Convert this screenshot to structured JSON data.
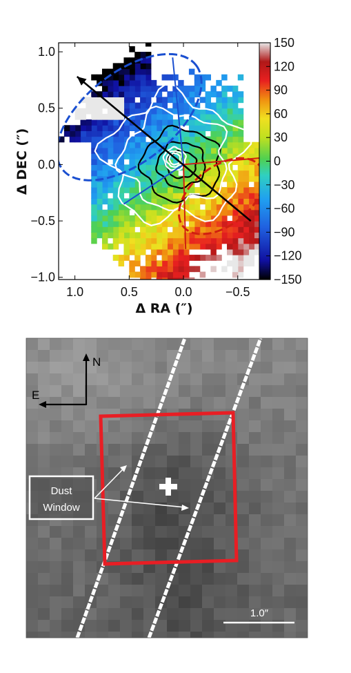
{
  "chart_data": [
    {
      "type": "heatmap",
      "title": "",
      "xlabel": "Δ RA (″)",
      "ylabel": "Δ DEC (″)",
      "xlim": [
        1.15,
        -0.8
      ],
      "ylim": [
        -1.02,
        1.08
      ],
      "x_ticks": [
        1.0,
        0.5,
        0.0,
        -0.5
      ],
      "x_tick_labels": [
        "1.0",
        "0.5",
        "0.0",
        "−0.5"
      ],
      "y_ticks": [
        1.0,
        0.5,
        0.0,
        -0.5,
        -1.0
      ],
      "y_tick_labels": [
        "1.0",
        "0.5",
        "0.0",
        "−0.5",
        "−1.0"
      ],
      "colorbar": {
        "range": [
          -150,
          150
        ],
        "ticks": [
          150,
          120,
          90,
          60,
          30,
          0,
          -30,
          -60,
          -90,
          -120,
          -150
        ],
        "tick_labels": [
          "150",
          "120",
          "90",
          "60",
          "30",
          "0",
          "−30",
          "−60",
          "−90",
          "−120",
          "−150"
        ],
        "colormap": "jet",
        "colors": [
          "#000000",
          "#1010a0",
          "#2060e0",
          "#20a0f0",
          "#30d0c0",
          "#50d050",
          "#c0e020",
          "#f0e020",
          "#f09010",
          "#e82020",
          "#b01818",
          "#e8e8e8"
        ]
      },
      "velocity_gradient": {
        "description_visible": false,
        "blue_side": "north-east",
        "red_side": "south-west",
        "center": [
          0.0,
          0.0
        ]
      },
      "arrow": {
        "from": [
          -0.62,
          -0.5
        ],
        "to": [
          0.98,
          0.78
        ],
        "color": "#000000"
      },
      "blue_cone_ellipse": {
        "center": [
          0.5,
          0.42
        ],
        "semi_major": 0.78,
        "semi_minor": 0.4,
        "angle_deg": 38,
        "color": "#1a4fd0"
      },
      "red_cone_ellipse": {
        "center": [
          -0.35,
          -0.28
        ],
        "semi_major": 0.45,
        "semi_minor": 0.26,
        "angle_deg": 38,
        "color": "#d02010"
      },
      "blue_cone_lines": [
        [
          [
            0.0,
            0.0
          ],
          [
            0.55,
            -0.35
          ]
        ],
        [
          [
            0.0,
            0.0
          ],
          [
            0.1,
            0.95
          ]
        ]
      ],
      "red_cone_lines": [
        [
          [
            0.0,
            0.0
          ],
          [
            -0.85,
            0.07
          ]
        ],
        [
          [
            0.0,
            0.0
          ],
          [
            -0.02,
            -0.75
          ]
        ]
      ],
      "contours_black_levels": 3,
      "contours_white_levels": 5
    },
    {
      "type": "image",
      "compass": {
        "north": "N",
        "east": "E"
      },
      "label": "Dust\nWindow",
      "label_lines": [
        "Dust",
        "Window"
      ],
      "scalebar_label": "1.0″",
      "scalebar_arcsec": 1.0,
      "box_color": "#e81e24",
      "slit_color": "#ffffff",
      "marker": "+"
    }
  ]
}
